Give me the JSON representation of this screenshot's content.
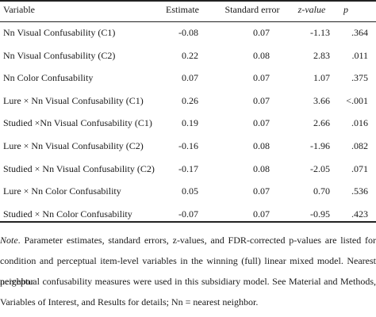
{
  "table": {
    "headers": {
      "variable": "Variable",
      "estimate": "Estimate",
      "se": "Standard error",
      "z": "z-value",
      "p": "p"
    },
    "rows": [
      {
        "variable": "Nn Visual Confusability (C1)",
        "estimate": "-0.08",
        "se": "0.07",
        "z": "-1.13",
        "p": ".364"
      },
      {
        "variable": "Nn Visual Confusability (C2)",
        "estimate": "0.22",
        "se": "0.08",
        "z": "2.83",
        "p": ".011"
      },
      {
        "variable": "Nn Color Confusability",
        "estimate": "0.07",
        "se": "0.07",
        "z": "1.07",
        "p": ".375"
      },
      {
        "variable": "Lure × Nn Visual Confusability (C1)",
        "estimate": "0.26",
        "se": "0.07",
        "z": "3.66",
        "p": "<.001"
      },
      {
        "variable": "Studied ×Nn Visual Confusability (C1)",
        "estimate": "0.19",
        "se": "0.07",
        "z": "2.66",
        "p": ".016"
      },
      {
        "variable": "Lure × Nn Visual Confusability (C2)",
        "estimate": "-0.16",
        "se": "0.08",
        "z": "-1.96",
        "p": ".082"
      },
      {
        "variable": "Studied × Nn Visual Confusability (C2)",
        "estimate": "-0.17",
        "se": "0.08",
        "z": "-2.05",
        "p": ".071"
      },
      {
        "variable": "Lure × Nn Color Confusability",
        "estimate": "0.05",
        "se": "0.07",
        "z": "0.70",
        "p": ".536"
      },
      {
        "variable": "Studied × Nn Color Confusability",
        "estimate": "-0.07",
        "se": "0.07",
        "z": "-0.95",
        "p": ".423"
      }
    ]
  },
  "note": {
    "label": "Note",
    "lines": [
      ". Parameter estimates, standard errors, z-values, and FDR-corrected p-values are listed for",
      "condition and perceptual item-level variables in the winning (full) linear mixed model. Nearest neighbor",
      "perceptual confusability measures were used in this subsidiary model. See Material and Methods,",
      "Variables of Interest, and Results for details; Nn = nearest neighbor."
    ]
  }
}
